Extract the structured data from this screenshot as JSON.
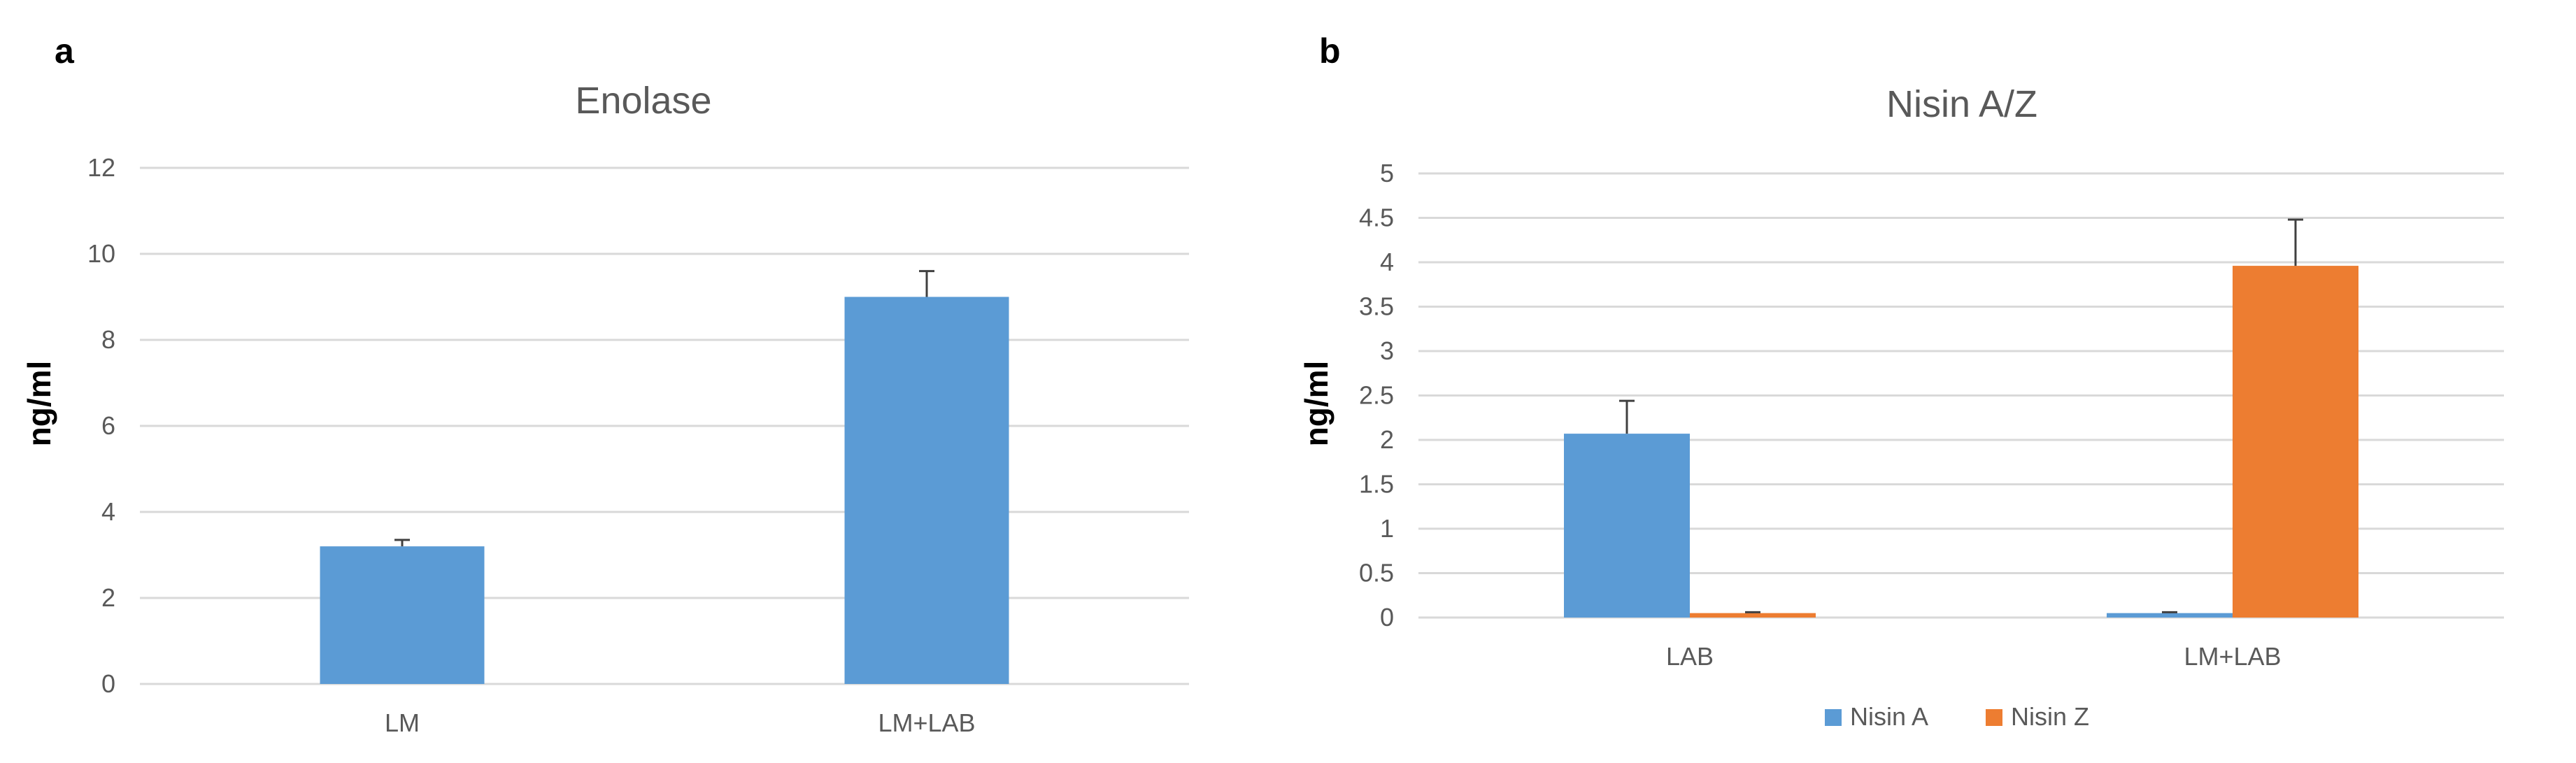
{
  "chart_data": [
    {
      "panel": "a",
      "type": "bar",
      "title": "Enolase",
      "ylabel": "ng/ml",
      "xlabel": "",
      "ylim": [
        0,
        12
      ],
      "yticks": [
        "0",
        "2",
        "4",
        "6",
        "8",
        "10",
        "12"
      ],
      "categories": [
        "LM",
        "LM+LAB"
      ],
      "series": [
        {
          "values": [
            3.2,
            9.0
          ],
          "errors": [
            0.15,
            0.6
          ],
          "color": "#5B9BD5"
        }
      ],
      "grid": true,
      "legend": "none"
    },
    {
      "panel": "b",
      "type": "bar",
      "title": "Nisin A/Z",
      "ylabel": "ng/ml",
      "xlabel": "",
      "ylim": [
        0,
        5
      ],
      "yticks": [
        "0",
        "0.5",
        "1",
        "1.5",
        "2",
        "2.5",
        "3",
        "3.5",
        "4",
        "4.5",
        "5"
      ],
      "categories": [
        "LAB",
        "LM+LAB"
      ],
      "series": [
        {
          "name": "Nisin A",
          "values": [
            2.07,
            0.05
          ],
          "errors": [
            0.37,
            0.01
          ],
          "color": "#5B9BD5"
        },
        {
          "name": "Nisin Z",
          "values": [
            0.05,
            3.96
          ],
          "errors": [
            0.01,
            0.52
          ],
          "color": "#ED7D31"
        }
      ],
      "grid": true,
      "legend": "bottom"
    }
  ]
}
